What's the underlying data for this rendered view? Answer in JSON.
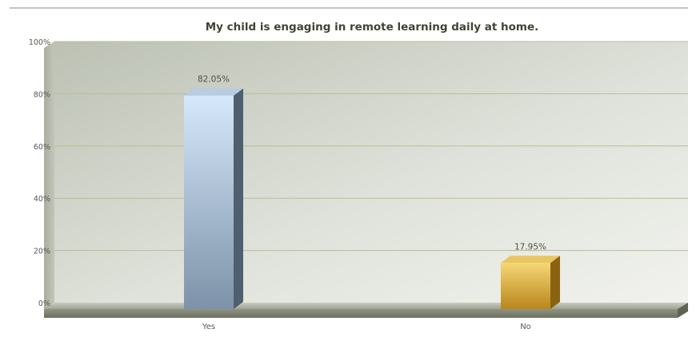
{
  "chart_data": {
    "type": "bar",
    "title": "My child is engaging in remote learning daily at home.",
    "categories": [
      "Yes",
      "No"
    ],
    "values": [
      82.05,
      17.95
    ],
    "data_labels": [
      "82.05%",
      "17.95%"
    ],
    "ylim": [
      0,
      100
    ],
    "yticks": [
      0,
      20,
      40,
      60,
      80,
      100
    ],
    "ytick_labels": [
      "0%",
      "20%",
      "40%",
      "60%",
      "80%",
      "100%"
    ],
    "xlabel": "",
    "ylabel": "",
    "grid": true,
    "legend": "none",
    "bar_colors": [
      {
        "light": "#d6e8fb",
        "dark": "#7d92a8",
        "side": "#4f5f70",
        "top": "#b9cbe0"
      },
      {
        "light": "#f6d675",
        "dark": "#b8871c",
        "side": "#8a6210",
        "top": "#e9c660"
      }
    ]
  }
}
